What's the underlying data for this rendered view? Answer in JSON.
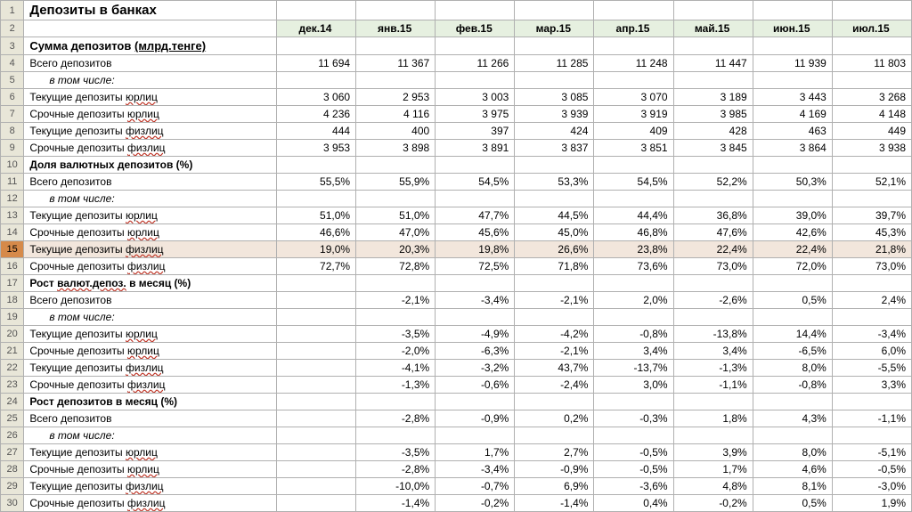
{
  "months": [
    "дек.14",
    "янв.15",
    "фев.15",
    "мар.15",
    "апр.15",
    "май.15",
    "июн.15",
    "июл.15"
  ],
  "rows": [
    {
      "n": 1,
      "cls": "title",
      "label": "Депозиты в банках",
      "vals": [
        "",
        "",
        "",
        "",
        "",
        "",
        "",
        ""
      ]
    },
    {
      "n": 2,
      "header": true
    },
    {
      "n": 3,
      "cls": "section",
      "label": "Сумма депозитов ",
      "ul": "(млрд.тенге)",
      "vals": [
        "",
        "",
        "",
        "",
        "",
        "",
        "",
        ""
      ]
    },
    {
      "n": 4,
      "label": "Всего депозитов",
      "vals": [
        "11 694",
        "11 367",
        "11 266",
        "11 285",
        "11 248",
        "11 447",
        "11 939",
        "11 803"
      ]
    },
    {
      "n": 5,
      "cls": "tom",
      "label": "в том числе:",
      "vals": [
        "",
        "",
        "",
        "",
        "",
        "",
        "",
        ""
      ]
    },
    {
      "n": 6,
      "label": "Текущие депозиты ",
      "sp": "юрлиц",
      "vals": [
        "3 060",
        "2 953",
        "3 003",
        "3 085",
        "3 070",
        "3 189",
        "3 443",
        "3 268"
      ]
    },
    {
      "n": 7,
      "label": "Срочные депозиты ",
      "sp": "юрлиц",
      "vals": [
        "4 236",
        "4 116",
        "3 975",
        "3 939",
        "3 919",
        "3 985",
        "4 169",
        "4 148"
      ]
    },
    {
      "n": 8,
      "label": "Текущие депозиты ",
      "sp": "физлиц",
      "vals": [
        "444",
        "400",
        "397",
        "424",
        "409",
        "428",
        "463",
        "449"
      ]
    },
    {
      "n": 9,
      "label": "Срочные депозиты ",
      "sp": "физлиц",
      "vals": [
        "3 953",
        "3 898",
        "3 891",
        "3 837",
        "3 851",
        "3 845",
        "3 864",
        "3 938"
      ]
    },
    {
      "n": 10,
      "cls": "subsection",
      "label": "Доля валютных депозитов (%)",
      "vals": [
        "",
        "",
        "",
        "",
        "",
        "",
        "",
        ""
      ]
    },
    {
      "n": 11,
      "label": "Всего депозитов",
      "vals": [
        "55,5%",
        "55,9%",
        "54,5%",
        "53,3%",
        "54,5%",
        "52,2%",
        "50,3%",
        "52,1%"
      ]
    },
    {
      "n": 12,
      "cls": "tom",
      "label": "в том числе:",
      "vals": [
        "",
        "",
        "",
        "",
        "",
        "",
        "",
        ""
      ]
    },
    {
      "n": 13,
      "label": "Текущие депозиты ",
      "sp": "юрлиц",
      "vals": [
        "51,0%",
        "51,0%",
        "47,7%",
        "44,5%",
        "44,4%",
        "36,8%",
        "39,0%",
        "39,7%"
      ]
    },
    {
      "n": 14,
      "label": "Срочные депозиты ",
      "sp": "юрлиц",
      "vals": [
        "46,6%",
        "47,0%",
        "45,6%",
        "45,0%",
        "46,8%",
        "47,6%",
        "42,6%",
        "45,3%"
      ]
    },
    {
      "n": 15,
      "sel": true,
      "label": "Текущие депозиты ",
      "sp": "физлиц",
      "vals": [
        "19,0%",
        "20,3%",
        "19,8%",
        "26,6%",
        "23,8%",
        "22,4%",
        "22,4%",
        "21,8%"
      ]
    },
    {
      "n": 16,
      "label": "Срочные депозиты ",
      "sp": "физлиц",
      "vals": [
        "72,7%",
        "72,8%",
        "72,5%",
        "71,8%",
        "73,6%",
        "73,0%",
        "72,0%",
        "73,0%"
      ]
    },
    {
      "n": 17,
      "cls": "subsection",
      "label": "Рост ",
      "sp": "валют.депоз.",
      "label2": " в месяц (%)",
      "vals": [
        "",
        "",
        "",
        "",
        "",
        "",
        "",
        ""
      ]
    },
    {
      "n": 18,
      "label": "Всего депозитов",
      "vals": [
        "",
        "-2,1%",
        "-3,4%",
        "-2,1%",
        "2,0%",
        "-2,6%",
        "0,5%",
        "2,4%"
      ]
    },
    {
      "n": 19,
      "cls": "tom",
      "label": "в том числе:",
      "vals": [
        "",
        "",
        "",
        "",
        "",
        "",
        "",
        ""
      ]
    },
    {
      "n": 20,
      "label": "Текущие депозиты ",
      "sp": "юрлиц",
      "vals": [
        "",
        "-3,5%",
        "-4,9%",
        "-4,2%",
        "-0,8%",
        "-13,8%",
        "14,4%",
        "-3,4%"
      ]
    },
    {
      "n": 21,
      "label": "Срочные депозиты ",
      "sp": "юрлиц",
      "vals": [
        "",
        "-2,0%",
        "-6,3%",
        "-2,1%",
        "3,4%",
        "3,4%",
        "-6,5%",
        "6,0%"
      ]
    },
    {
      "n": 22,
      "label": "Текущие депозиты ",
      "sp": "физлиц",
      "vals": [
        "",
        "-4,1%",
        "-3,2%",
        "43,7%",
        "-13,7%",
        "-1,3%",
        "8,0%",
        "-5,5%"
      ]
    },
    {
      "n": 23,
      "label": "Срочные депозиты ",
      "sp": "физлиц",
      "vals": [
        "",
        "-1,3%",
        "-0,6%",
        "-2,4%",
        "3,0%",
        "-1,1%",
        "-0,8%",
        "3,3%"
      ]
    },
    {
      "n": 24,
      "cls": "subsection",
      "label": "Рост депозитов в месяц (%)",
      "vals": [
        "",
        "",
        "",
        "",
        "",
        "",
        "",
        ""
      ]
    },
    {
      "n": 25,
      "label": "Всего депозитов",
      "vals": [
        "",
        "-2,8%",
        "-0,9%",
        "0,2%",
        "-0,3%",
        "1,8%",
        "4,3%",
        "-1,1%"
      ]
    },
    {
      "n": 26,
      "cls": "tom",
      "label": "в том числе:",
      "vals": [
        "",
        "",
        "",
        "",
        "",
        "",
        "",
        ""
      ]
    },
    {
      "n": 27,
      "label": "Текущие депозиты ",
      "sp": "юрлиц",
      "vals": [
        "",
        "-3,5%",
        "1,7%",
        "2,7%",
        "-0,5%",
        "3,9%",
        "8,0%",
        "-5,1%"
      ]
    },
    {
      "n": 28,
      "label": "Срочные депозиты ",
      "sp": "юрлиц",
      "vals": [
        "",
        "-2,8%",
        "-3,4%",
        "-0,9%",
        "-0,5%",
        "1,7%",
        "4,6%",
        "-0,5%"
      ]
    },
    {
      "n": 29,
      "label": "Текущие депозиты ",
      "sp": "физлиц",
      "vals": [
        "",
        "-10,0%",
        "-0,7%",
        "6,9%",
        "-3,6%",
        "4,8%",
        "8,1%",
        "-3,0%"
      ]
    },
    {
      "n": 30,
      "label": "Срочные депозиты ",
      "sp": "физлиц",
      "vals": [
        "",
        "-1,4%",
        "-0,2%",
        "-1,4%",
        "0,4%",
        "-0,2%",
        "0,5%",
        "1,9%"
      ]
    }
  ]
}
